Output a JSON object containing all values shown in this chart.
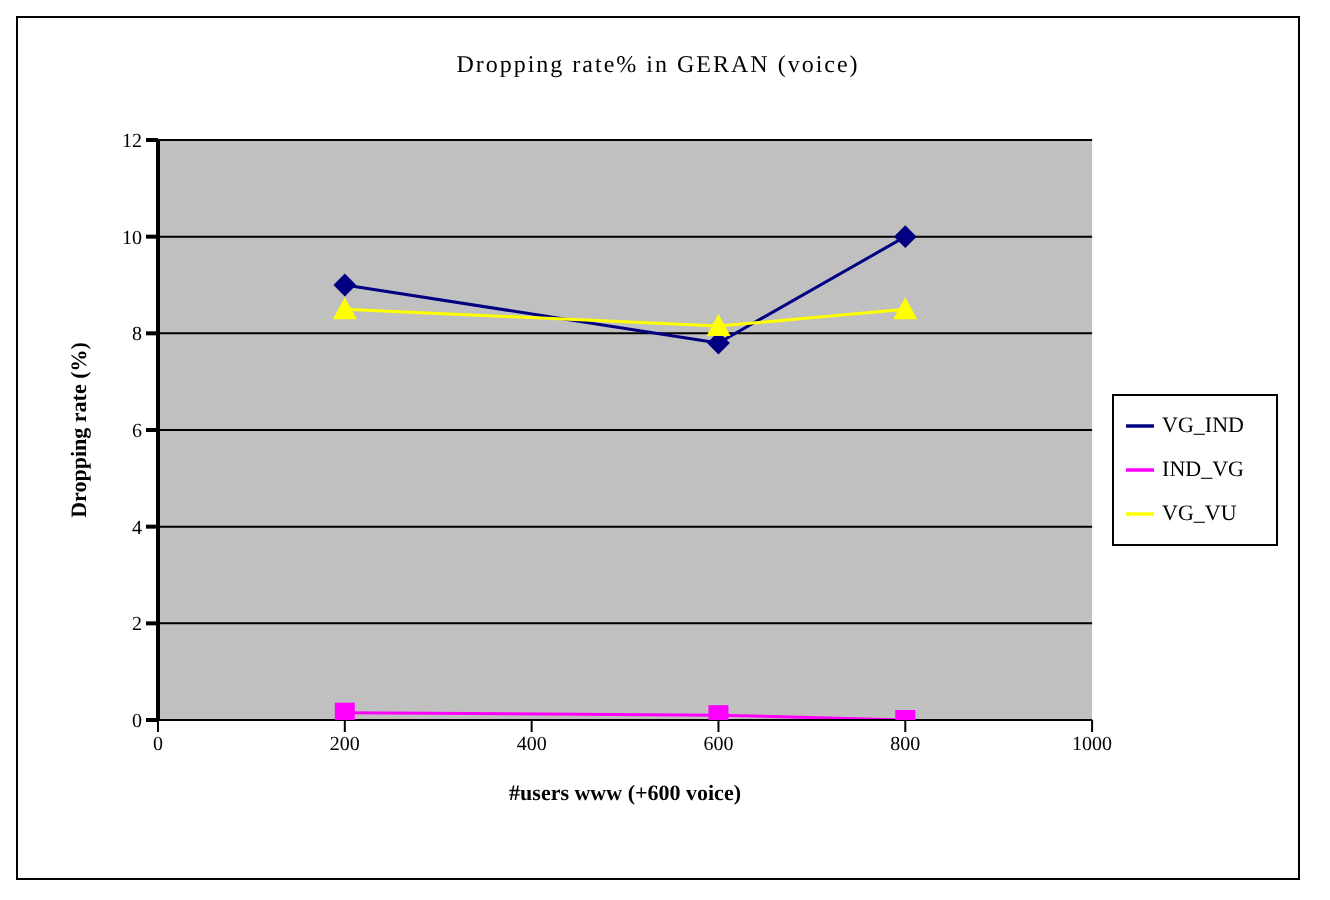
{
  "chart_data": {
    "type": "line",
    "title": "Dropping rate% in GERAN (voice)",
    "xlabel": "#users www (+600 voice)",
    "ylabel": "Dropping rate (%)",
    "x": [
      200,
      600,
      800
    ],
    "series": [
      {
        "name": "VG_IND",
        "color": "#000080",
        "values": [
          9,
          7.8,
          10
        ],
        "marker": "diamond"
      },
      {
        "name": "IND_VG",
        "color": "#ff00ff",
        "values": [
          0.15,
          0.1,
          0
        ],
        "marker": "square"
      },
      {
        "name": "VG_VU",
        "color": "#ffff00",
        "values": [
          8.5,
          8.15,
          8.5
        ],
        "marker": "triangle"
      }
    ],
    "xlim": [
      0,
      1000
    ],
    "xticks": [
      0,
      200,
      400,
      600,
      800,
      1000
    ],
    "ylim": [
      0,
      12
    ],
    "yticks": [
      0,
      2,
      4,
      6,
      8,
      10,
      12
    ],
    "grid": "y",
    "legend": "right",
    "line_style": "solid"
  }
}
